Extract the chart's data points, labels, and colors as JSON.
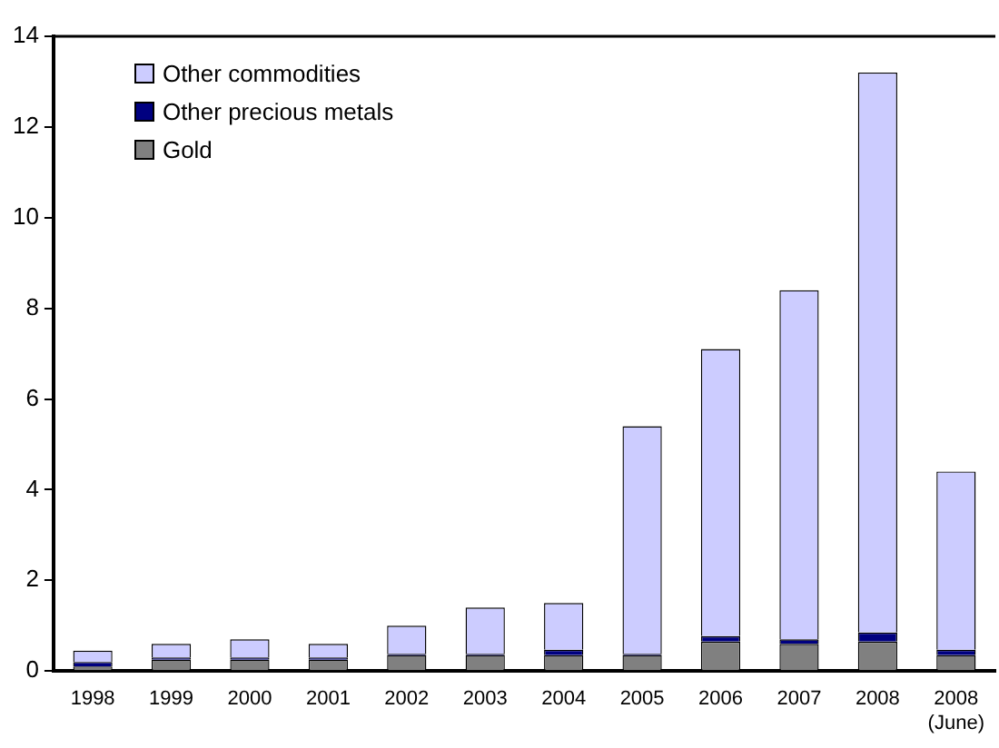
{
  "chart_data": {
    "type": "bar",
    "stacked": true,
    "categories": [
      "1998",
      "1999",
      "2000",
      "2001",
      "2002",
      "2003",
      "2004",
      "2005",
      "2006",
      "2007",
      "2008",
      "2008\n(June)"
    ],
    "series": [
      {
        "name": "Gold",
        "color": "#808080",
        "values": [
          0.1,
          0.25,
          0.25,
          0.25,
          0.35,
          0.35,
          0.35,
          0.35,
          0.65,
          0.6,
          0.65,
          0.35
        ]
      },
      {
        "name": "Other precious metals",
        "color": "#000080",
        "values": [
          0.1,
          0.05,
          0.05,
          0.05,
          0.03,
          0.03,
          0.12,
          0.03,
          0.12,
          0.1,
          0.2,
          0.12
        ]
      },
      {
        "name": "Other commodities",
        "color": "#ccccff",
        "values": [
          0.25,
          0.3,
          0.4,
          0.3,
          0.62,
          1.02,
          1.03,
          5.02,
          6.33,
          7.7,
          12.35,
          3.93
        ]
      }
    ],
    "ylim": [
      0,
      14
    ],
    "yticks": [
      0,
      2,
      4,
      6,
      8,
      10,
      12,
      14
    ],
    "grid": false,
    "legend": "top left"
  }
}
